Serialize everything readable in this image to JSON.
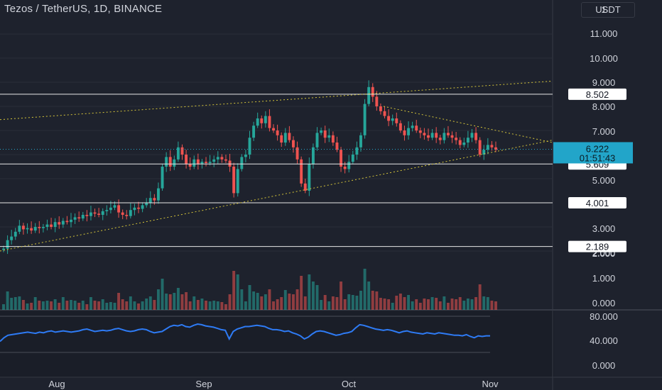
{
  "header": {
    "title": "Tezos / TetherUS, 1D, BINANCE",
    "currency": "USDT"
  },
  "chart_data": [
    {
      "type": "candlestick",
      "title": "Tezos / TetherUS, 1D, BINANCE",
      "y_axis_labels": [
        "1",
        "11.000",
        "10.000",
        "9.000",
        "8.000",
        "7.000",
        "5.000",
        "3.000",
        "2.000"
      ],
      "y_ticks": [
        11,
        10,
        9,
        8,
        7,
        6,
        5,
        4,
        3,
        2
      ],
      "x_labels": [
        "Aug",
        "Sep",
        "Oct",
        "Nov"
      ],
      "last_price": "6.222",
      "countdown": "01:51:43",
      "horizontal_levels": [
        "8.502",
        "5.609",
        "4.001",
        "2.189"
      ],
      "trendlines": [
        {
          "name": "upper channel",
          "style": "dotted",
          "color": "#d4c43a"
        },
        {
          "name": "lower channel",
          "style": "dotted",
          "color": "#d4c43a"
        },
        {
          "name": "descending resistance",
          "style": "dotted",
          "color": "#d4c43a"
        }
      ],
      "up_color": "#26a69a",
      "down_color": "#ef5350",
      "close_series": [
        2.1,
        2.45,
        2.6,
        2.8,
        3.05,
        2.9,
        2.95,
        2.85,
        3.0,
        2.95,
        3.0,
        3.1,
        3.0,
        3.2,
        3.1,
        3.25,
        3.2,
        3.3,
        3.4,
        3.35,
        3.5,
        3.45,
        3.6,
        3.55,
        3.5,
        3.65,
        3.7,
        3.8,
        3.9,
        3.6,
        3.5,
        3.45,
        3.7,
        3.8,
        3.75,
        3.9,
        4.0,
        4.2,
        4.1,
        4.6,
        5.5,
        5.9,
        5.5,
        5.8,
        6.3,
        6.0,
        5.6,
        5.5,
        5.8,
        5.6,
        5.7,
        5.65,
        5.7,
        5.8,
        5.9,
        5.8,
        5.75,
        5.5,
        4.4,
        5.4,
        5.9,
        6.0,
        6.7,
        7.2,
        7.5,
        7.3,
        7.6,
        7.1,
        7.0,
        6.8,
        6.5,
        6.9,
        6.6,
        6.3,
        5.8,
        4.8,
        4.5,
        5.6,
        6.3,
        6.9,
        7.0,
        6.7,
        6.8,
        6.5,
        6.2,
        5.5,
        5.4,
        5.7,
        6.0,
        6.3,
        6.8,
        8.1,
        8.8,
        8.4,
        8.0,
        7.8,
        7.6,
        7.4,
        7.5,
        7.3,
        7.0,
        6.8,
        7.1,
        7.2,
        7.0,
        6.9,
        6.8,
        6.7,
        6.9,
        6.7,
        6.6,
        6.9,
        6.8,
        6.7,
        6.6,
        6.4,
        6.5,
        6.7,
        6.9,
        6.6,
        6.0,
        6.2,
        6.4,
        6.3,
        6.2
      ],
      "volume_axis_labels": [
        "2.000",
        "1.000",
        "0.000"
      ],
      "oscillator": {
        "axis_labels": [
          "80.000",
          "40.000",
          "0.000"
        ],
        "values": [
          36,
          42,
          46,
          47,
          48,
          49,
          50,
          51,
          50,
          49,
          51,
          50,
          52,
          53,
          51,
          52,
          53,
          52,
          51,
          52,
          53,
          55,
          56,
          54,
          52,
          53,
          54,
          53,
          54,
          56,
          57,
          55,
          53,
          52,
          53,
          55,
          56,
          55,
          52,
          50,
          51,
          52,
          56,
          60,
          62,
          61,
          63,
          60,
          59,
          62,
          64,
          63,
          61,
          60,
          59,
          57,
          55,
          54,
          40,
          52,
          56,
          58,
          60,
          60,
          61,
          62,
          61,
          60,
          57,
          55,
          55,
          54,
          52,
          53,
          50,
          48,
          45,
          40,
          43,
          48,
          52,
          53,
          52,
          50,
          48,
          46,
          47,
          49,
          50,
          52,
          58,
          63,
          62,
          60,
          58,
          56,
          55,
          54,
          55,
          54,
          52,
          50,
          52,
          53,
          51,
          50,
          49,
          48,
          50,
          49,
          48,
          50,
          49,
          48,
          47,
          46,
          46,
          45,
          47,
          44,
          42,
          45,
          44,
          45,
          45
        ],
        "color": "#2e7bf5"
      }
    }
  ]
}
